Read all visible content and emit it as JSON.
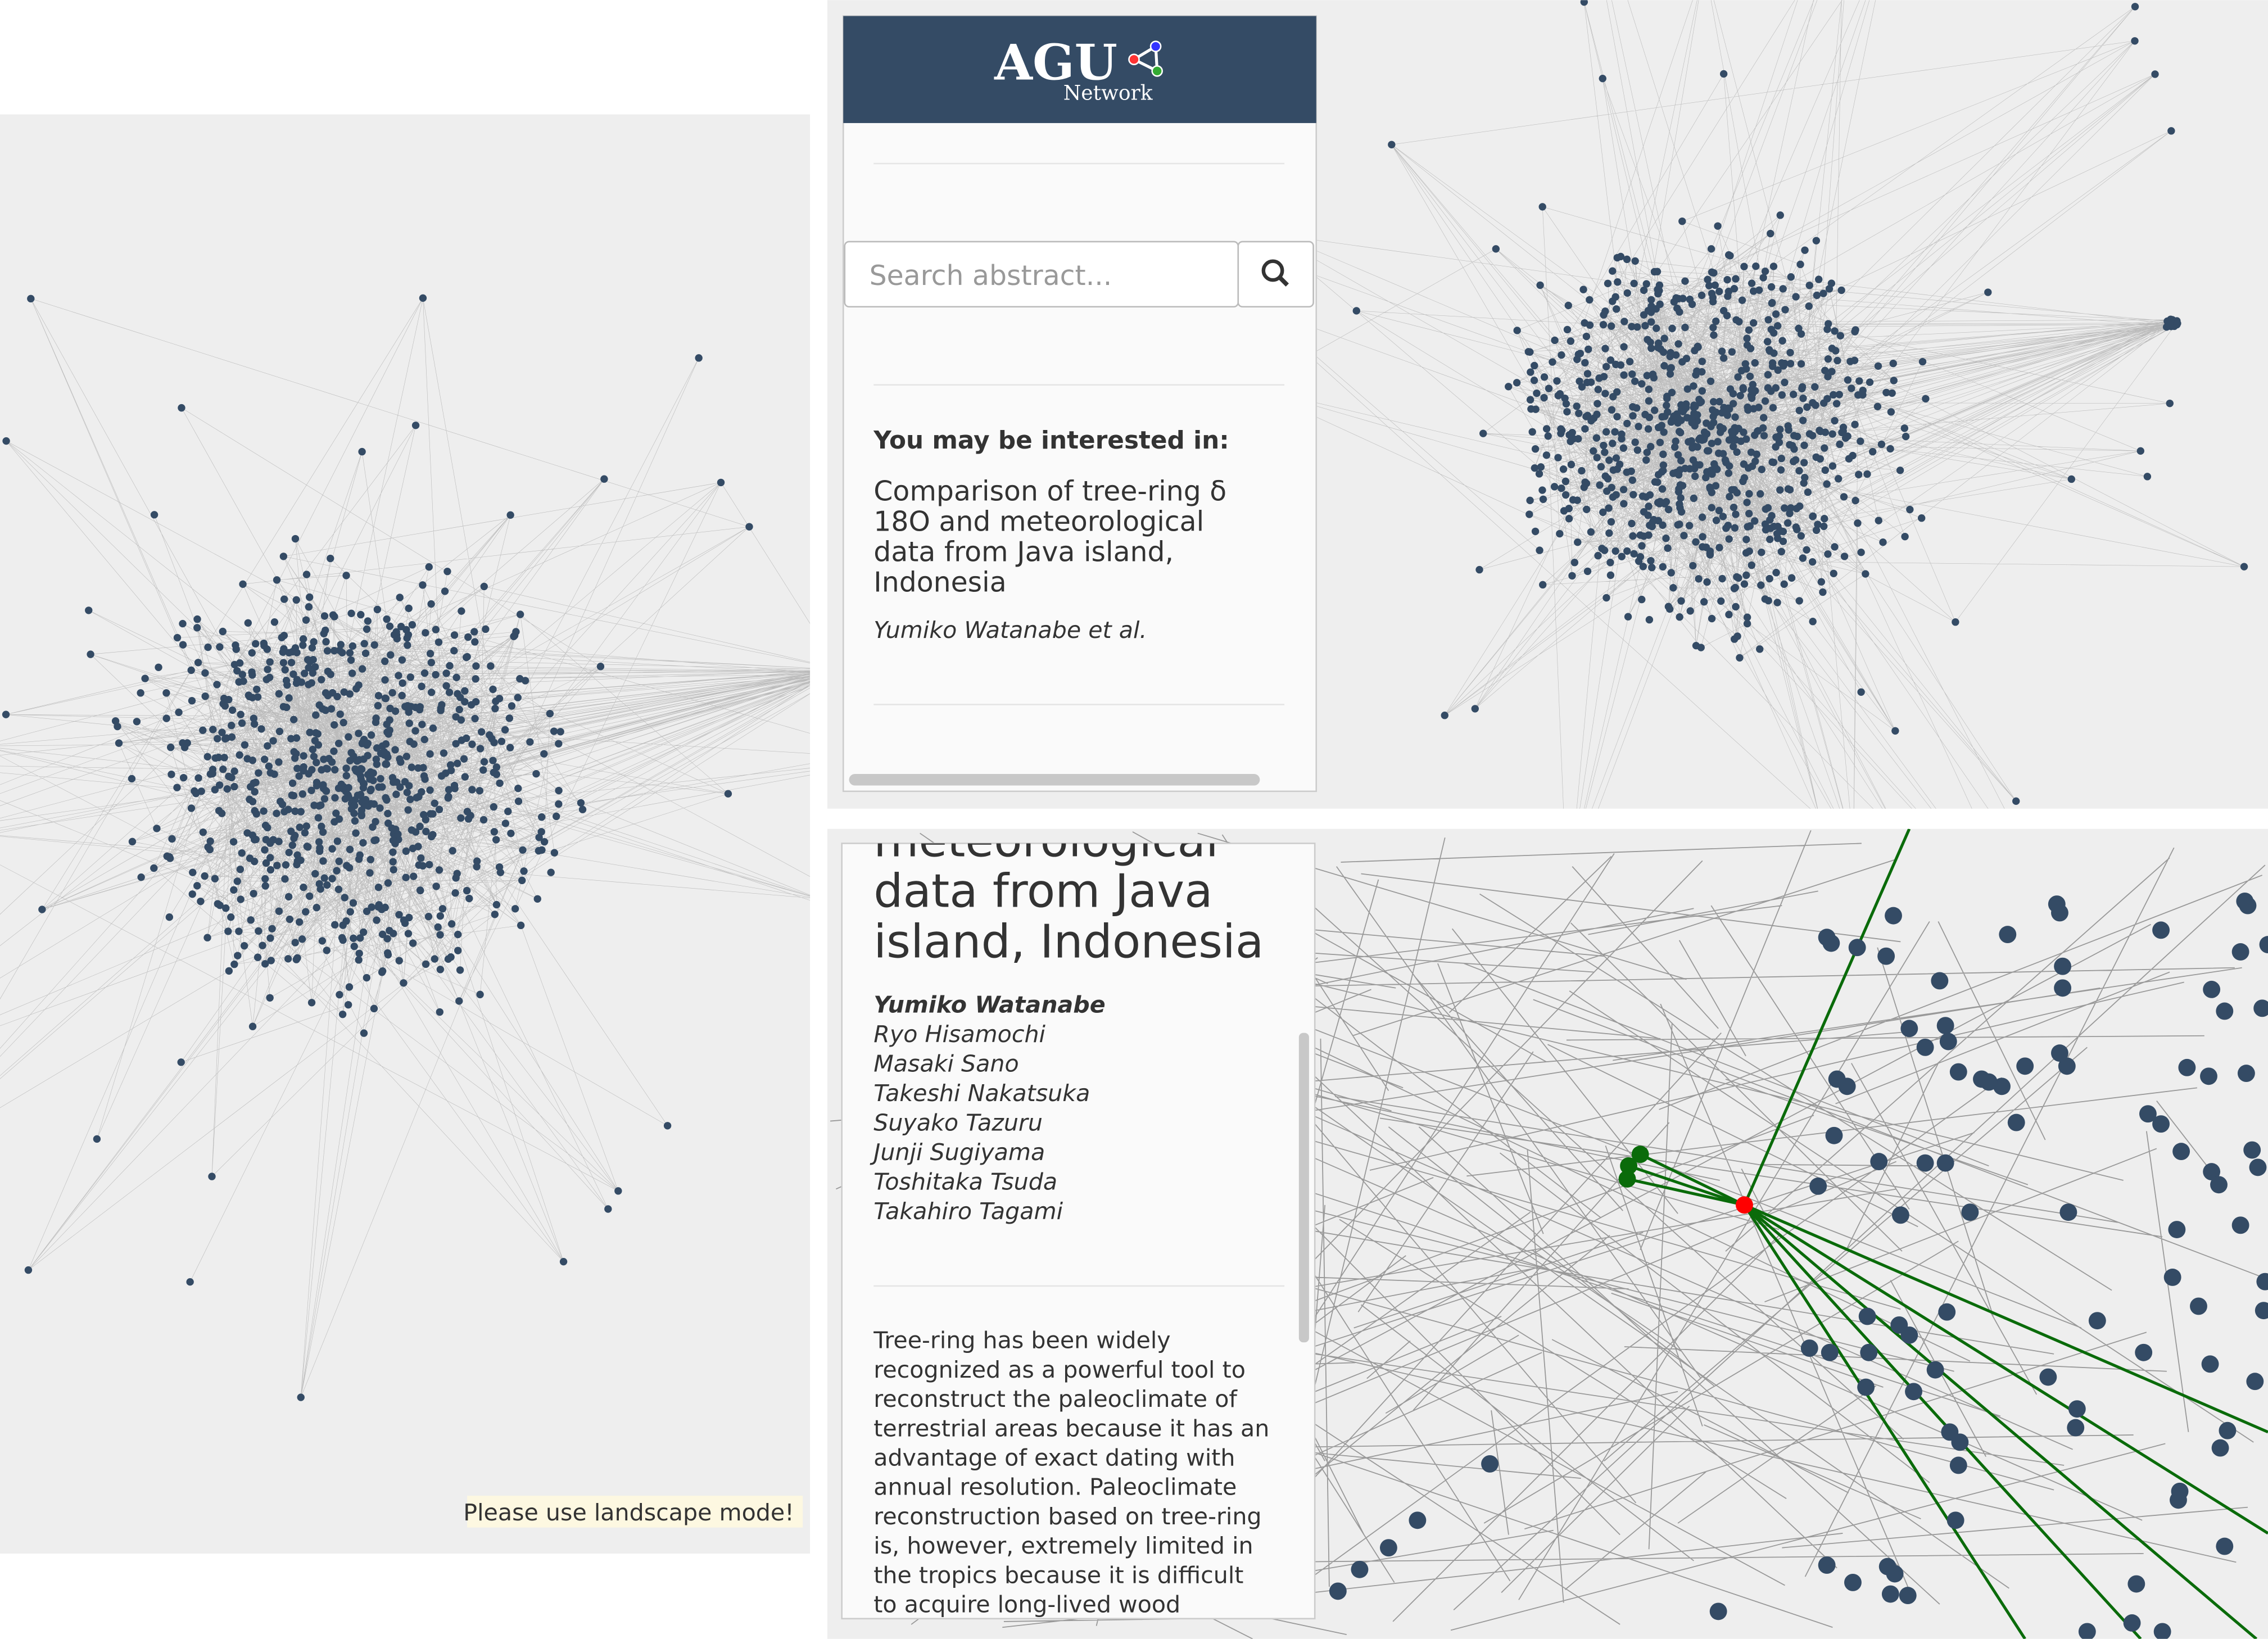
{
  "header": {
    "logo": "AGU",
    "logo_sub": "Network"
  },
  "search": {
    "placeholder": "Search abstract..."
  },
  "suggestion": {
    "heading": "You may be interested in:",
    "title_lines": [
      "Comparison of tree-ring δ",
      "18O and meteorological",
      "data from Java island,",
      "Indonesia"
    ],
    "authors": "Yumiko Watanabe et al."
  },
  "notice": "Please use landscape mode!",
  "detail": {
    "title_lines": [
      "meteorological",
      "data from Java",
      "island, Indonesia"
    ],
    "authors": [
      "Yumiko Watanabe",
      "Ryo Hisamochi",
      "Masaki Sano",
      "Takeshi Nakatsuka",
      "Suyako Tazuru",
      "Junji Sugiyama",
      "Toshitaka Tsuda",
      "Takahiro Tagami"
    ],
    "abstract_lines": [
      "Tree-ring has been widely",
      "recognized as a powerful tool to",
      "reconstruct the paleoclimate of",
      "terrestrial areas because it has an",
      "advantage of exact dating with",
      "annual resolution. Paleoclimate",
      "reconstruction based on tree-ring",
      "is, however, extremely limited in",
      "the tropics because it is difficult",
      "to acquire long-lived wood"
    ]
  }
}
